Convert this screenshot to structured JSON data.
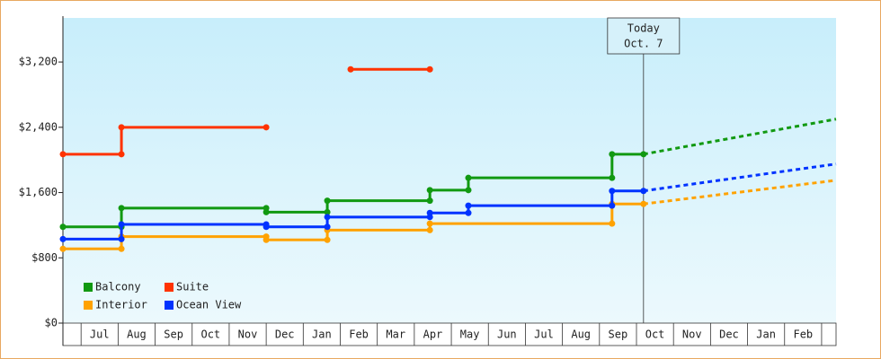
{
  "chart_data": {
    "type": "step_line",
    "categories": [
      "Jul",
      "Aug",
      "Sep",
      "Oct",
      "Nov",
      "Dec",
      "Jan",
      "Feb",
      "Mar",
      "Apr",
      "May",
      "Jun",
      "Jul",
      "Aug",
      "Sep",
      "Oct",
      "Nov",
      "Dec",
      "Jan",
      "Feb"
    ],
    "xlim": [
      -0.49,
      20.39
    ],
    "ylim": [
      0,
      3740
    ],
    "yticks": [
      {
        "value": 0,
        "label": "$0"
      },
      {
        "value": 800,
        "label": "$800"
      },
      {
        "value": 1600,
        "label": "$1,600"
      },
      {
        "value": 2400,
        "label": "$2,400"
      },
      {
        "value": 3200,
        "label": "$3,200"
      }
    ],
    "annotation": {
      "x": 15.19,
      "text": [
        "Today",
        "Oct. 7"
      ]
    },
    "forecast_x": [
      15.19,
      20.39
    ],
    "series": [
      {
        "name": "Balcony",
        "color": "#119911",
        "x": [
          -0.49,
          1.09,
          1.09,
          5.0,
          5.0,
          6.65,
          6.65,
          9.42,
          9.42,
          10.46,
          10.46,
          14.34,
          14.34,
          15.19
        ],
        "values": [
          1180,
          1180,
          1410,
          1410,
          1360,
          1360,
          1500,
          1500,
          1630,
          1630,
          1780,
          1780,
          2070,
          2070
        ],
        "forecast": [
          2070,
          2500
        ]
      },
      {
        "name": "Suite",
        "color": "#ff3300",
        "x": [
          -0.49,
          1.09,
          1.09,
          5.0,
          null,
          7.28,
          9.42
        ],
        "values": [
          2070,
          2070,
          2400,
          2400,
          null,
          3110,
          3110
        ]
      },
      {
        "name": "Interior",
        "color": "#ffa200",
        "x": [
          -0.49,
          1.09,
          1.09,
          5.0,
          5.0,
          6.65,
          6.65,
          9.42,
          9.42,
          14.34,
          14.34,
          15.19
        ],
        "values": [
          910,
          910,
          1060,
          1060,
          1020,
          1020,
          1140,
          1140,
          1220,
          1220,
          1460,
          1460
        ],
        "forecast": [
          1460,
          1750
        ]
      },
      {
        "name": "Ocean View",
        "color": "#0033ff",
        "x": [
          -0.49,
          1.09,
          1.09,
          5.0,
          5.0,
          6.65,
          6.65,
          9.42,
          9.42,
          10.46,
          10.46,
          14.34,
          14.34,
          15.19
        ],
        "values": [
          1030,
          1030,
          1210,
          1210,
          1180,
          1180,
          1300,
          1300,
          1350,
          1350,
          1440,
          1440,
          1620,
          1620
        ],
        "forecast": [
          1620,
          1950
        ]
      }
    ]
  }
}
